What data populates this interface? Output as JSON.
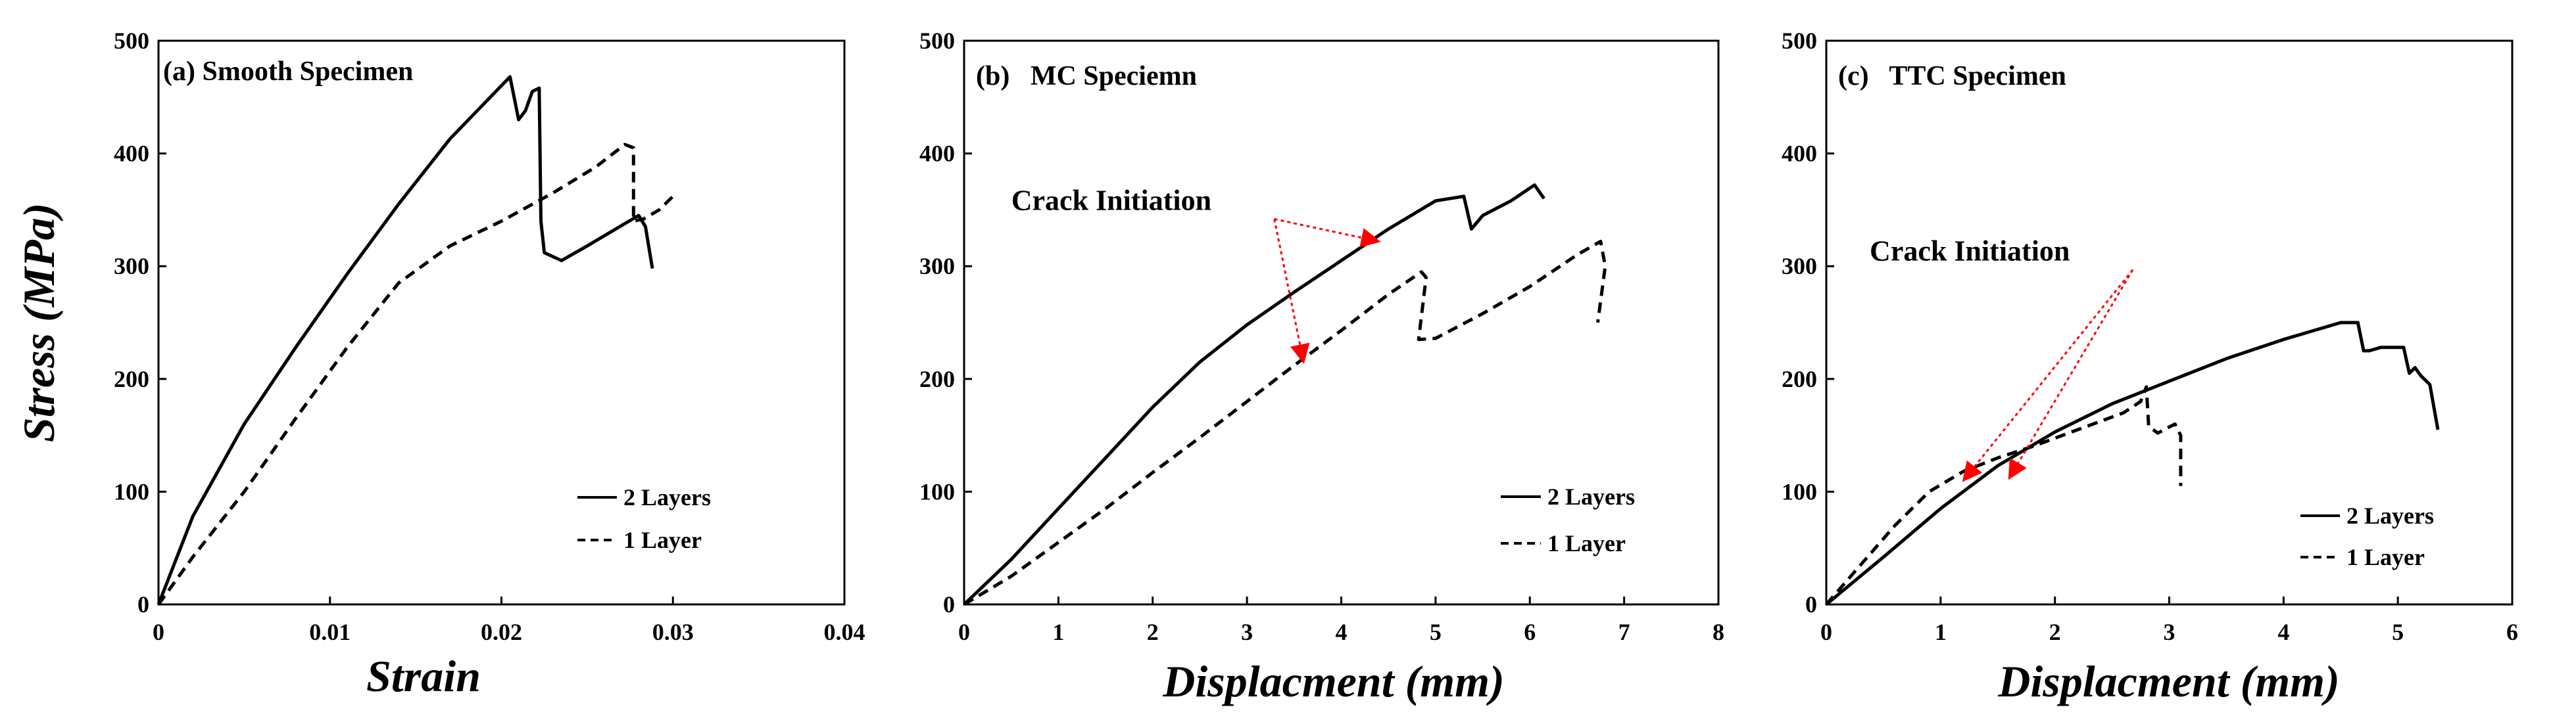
{
  "chart_data": [
    {
      "type": "line",
      "panel_title": "(a) Smooth Specimen",
      "xlabel": "Strain",
      "ylabel": "Stress (MPa)",
      "xlim": [
        0,
        0.04
      ],
      "ylim": [
        0,
        500
      ],
      "xticks": [
        0,
        0.01,
        0.02,
        0.03,
        0.04
      ],
      "xtick_labels": [
        "0",
        "0.01",
        "0.02",
        "0.03",
        "0.04"
      ],
      "yticks": [
        0,
        100,
        200,
        300,
        400,
        500
      ],
      "ytick_labels": [
        "0",
        "100",
        "200",
        "300",
        "400",
        "500"
      ],
      "legend_position": "bottom-right",
      "series": [
        {
          "name": "2 Layers",
          "style": "solid",
          "x": [
            0,
            0.002,
            0.005,
            0.008,
            0.011,
            0.014,
            0.017,
            0.0205,
            0.021,
            0.0214,
            0.0218,
            0.0222,
            0.0223,
            0.0225,
            0.0235,
            0.025,
            0.027,
            0.028,
            0.0284,
            0.0288
          ],
          "y": [
            0,
            78,
            160,
            228,
            293,
            355,
            413,
            468,
            430,
            438,
            455,
            458,
            340,
            312,
            305,
            318,
            336,
            345,
            335,
            298
          ]
        },
        {
          "name": "1 Layer",
          "style": "dashed",
          "x": [
            0,
            0.002,
            0.005,
            0.008,
            0.011,
            0.014,
            0.017,
            0.02,
            0.023,
            0.0255,
            0.0272,
            0.0277,
            0.0277,
            0.0283,
            0.0292,
            0.03
          ],
          "y": [
            0,
            42,
            100,
            165,
            228,
            285,
            318,
            340,
            365,
            388,
            408,
            405,
            340,
            342,
            350,
            362
          ]
        }
      ],
      "annotations": []
    },
    {
      "type": "line",
      "panel_title": "(b)   MC Speciemn",
      "xlabel": "Displacment (mm)",
      "ylabel": "",
      "xlim": [
        0,
        8
      ],
      "ylim": [
        0,
        500
      ],
      "xticks": [
        0,
        1,
        2,
        3,
        4,
        5,
        6,
        7,
        8
      ],
      "xtick_labels": [
        "0",
        "1",
        "2",
        "3",
        "4",
        "5",
        "6",
        "7",
        "8"
      ],
      "yticks": [
        0,
        100,
        200,
        300,
        400,
        500
      ],
      "ytick_labels": [
        "0",
        "100",
        "200",
        "300",
        "400",
        "500"
      ],
      "legend_position": "bottom-right",
      "series": [
        {
          "name": "2 Layers",
          "style": "solid",
          "x": [
            0,
            0.5,
            1,
            1.5,
            2,
            2.5,
            3,
            3.5,
            4,
            4.5,
            5,
            5.3,
            5.38,
            5.5,
            5.8,
            6.05,
            6.15
          ],
          "y": [
            0,
            40,
            85,
            130,
            175,
            215,
            248,
            277,
            305,
            333,
            358,
            362,
            333,
            345,
            358,
            372,
            360
          ]
        },
        {
          "name": "1 Layer",
          "style": "dashed",
          "x": [
            0,
            0.5,
            1,
            1.5,
            2,
            2.5,
            3,
            3.5,
            4,
            4.5,
            4.85,
            4.9,
            4.82,
            5,
            5.5,
            6,
            6.5,
            6.75,
            6.8,
            6.72
          ],
          "y": [
            0,
            25,
            55,
            85,
            117,
            148,
            180,
            212,
            243,
            275,
            295,
            290,
            235,
            236,
            258,
            282,
            310,
            322,
            300,
            250
          ]
        }
      ],
      "annotations": [
        {
          "text": "Crack Initiation",
          "x": 0.5,
          "y": 350,
          "arrow_targets": [
            [
              4.4,
              322
            ],
            [
              3.6,
              215
            ]
          ]
        }
      ]
    },
    {
      "type": "line",
      "panel_title": "(c)   TTC Specimen",
      "xlabel": "Displacment (mm)",
      "ylabel": "",
      "xlim": [
        0,
        6
      ],
      "ylim": [
        0,
        500
      ],
      "xticks": [
        0,
        1,
        2,
        3,
        4,
        5,
        6
      ],
      "xtick_labels": [
        "0",
        "1",
        "2",
        "3",
        "4",
        "5",
        "6"
      ],
      "yticks": [
        0,
        100,
        200,
        300,
        400,
        500
      ],
      "ytick_labels": [
        "0",
        "100",
        "200",
        "300",
        "400",
        "500"
      ],
      "legend_position": "bottom-right",
      "series": [
        {
          "name": "2 Layers",
          "style": "solid",
          "x": [
            0,
            0.5,
            1,
            1.5,
            2,
            2.5,
            3,
            3.5,
            4,
            4.5,
            4.65,
            4.7,
            4.75,
            4.85,
            5.05,
            5.1,
            5.15,
            5.2,
            5.28,
            5.35
          ],
          "y": [
            0,
            42,
            85,
            123,
            153,
            178,
            198,
            218,
            235,
            250,
            250,
            225,
            225,
            228,
            228,
            205,
            210,
            203,
            195,
            155
          ]
        },
        {
          "name": "1 Layer",
          "style": "dashed",
          "x": [
            0,
            0.3,
            0.6,
            0.9,
            1.2,
            1.5,
            1.8,
            2.2,
            2.6,
            2.75,
            2.8,
            2.82,
            2.9,
            3.05,
            3.1,
            3.1
          ],
          "y": [
            0,
            35,
            70,
            100,
            118,
            130,
            140,
            155,
            170,
            180,
            193,
            158,
            152,
            160,
            150,
            105
          ]
        }
      ],
      "annotations": [
        {
          "text": "Crack Initiation",
          "x": 0.38,
          "y": 305,
          "arrow_targets": [
            [
              1.2,
              110
            ],
            [
              1.6,
              112
            ]
          ]
        }
      ]
    }
  ]
}
